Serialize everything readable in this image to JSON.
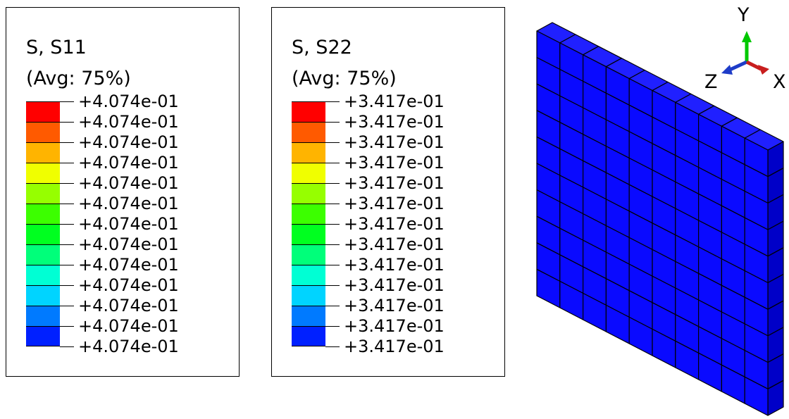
{
  "legends": [
    {
      "title_line1": "S, S11",
      "title_line2": "(Avg: 75%)",
      "labels": [
        "+4.074e-01",
        "+4.074e-01",
        "+4.074e-01",
        "+4.074e-01",
        "+4.074e-01",
        "+4.074e-01",
        "+4.074e-01",
        "+4.074e-01",
        "+4.074e-01",
        "+4.074e-01",
        "+4.074e-01",
        "+4.074e-01",
        "+4.074e-01"
      ]
    },
    {
      "title_line1": "S, S22",
      "title_line2": "(Avg: 75%)",
      "labels": [
        "+3.417e-01",
        "+3.417e-01",
        "+3.417e-01",
        "+3.417e-01",
        "+3.417e-01",
        "+3.417e-01",
        "+3.417e-01",
        "+3.417e-01",
        "+3.417e-01",
        "+3.417e-01",
        "+3.417e-01",
        "+3.417e-01",
        "+3.417e-01"
      ]
    }
  ],
  "colormap": [
    "#ff0000",
    "#ff5a00",
    "#ffb400",
    "#f0ff00",
    "#96ff00",
    "#3cff00",
    "#00ff20",
    "#00ff7a",
    "#00ffd4",
    "#00d4ff",
    "#007aff",
    "#0020ff"
  ],
  "mesh": {
    "columns": 10,
    "rows": 10,
    "face_color": "#0a0aff",
    "side_color": "#0000c8",
    "top_color": "#2020ff"
  },
  "triad": {
    "y_label": "Y",
    "z_label": "Z",
    "x_label": "X",
    "y_color": "#00c800",
    "z_color": "#1e3cc8",
    "x_color": "#c81e1e"
  }
}
